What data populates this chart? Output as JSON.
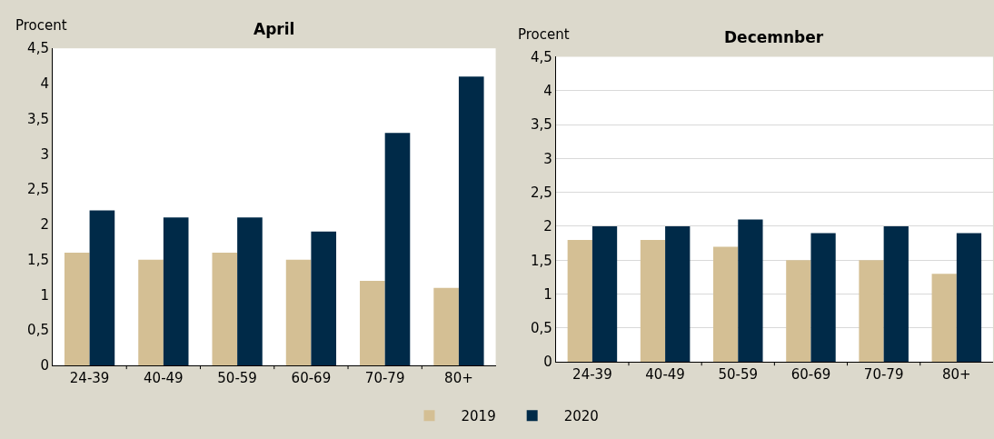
{
  "chart_data": [
    {
      "type": "bar",
      "title": "April",
      "ylabel": "Procent",
      "categories": [
        "24-39",
        "40-49",
        "50-59",
        "60-69",
        "70-79",
        "80+"
      ],
      "series": [
        {
          "name": "2019",
          "color": "#d4bf94",
          "values": [
            1.6,
            1.5,
            1.6,
            1.5,
            1.2,
            1.1
          ]
        },
        {
          "name": "2020",
          "color": "#002a48",
          "values": [
            2.2,
            2.1,
            2.1,
            1.9,
            3.3,
            4.1
          ]
        }
      ],
      "ylim": [
        0,
        4.5
      ],
      "yticks": [
        0,
        {
          "value": 0.5,
          "label": "0,5"
        },
        1,
        {
          "value": 1.5,
          "label": "1,5"
        },
        2,
        {
          "value": 2.5,
          "label": "2,5"
        },
        3,
        {
          "value": 3.5,
          "label": "3,5"
        },
        4,
        {
          "value": 4.5,
          "label": "4,5"
        }
      ],
      "grid": false,
      "legend": "bottom"
    },
    {
      "type": "bar",
      "title": "Decemnber",
      "ylabel": "Procent",
      "categories": [
        "24-39",
        "40-49",
        "50-59",
        "60-69",
        "70-79",
        "80+"
      ],
      "series": [
        {
          "name": "2019",
          "color": "#d4bf94",
          "values": [
            1.8,
            1.8,
            1.7,
            1.5,
            1.5,
            1.3
          ]
        },
        {
          "name": "2020",
          "color": "#002a48",
          "values": [
            2.0,
            2.0,
            2.1,
            1.9,
            2.0,
            1.9
          ]
        }
      ],
      "ylim": [
        0,
        4.5
      ],
      "yticks": [
        0,
        {
          "value": 0.5,
          "label": "0,5"
        },
        1,
        {
          "value": 1.5,
          "label": "1,5"
        },
        2,
        {
          "value": 2.5,
          "label": "2,5"
        },
        3,
        {
          "value": 3.5,
          "label": "3,5"
        },
        4,
        {
          "value": 4.5,
          "label": "4,5"
        }
      ],
      "grid": "y",
      "legend": "bottom"
    }
  ]
}
